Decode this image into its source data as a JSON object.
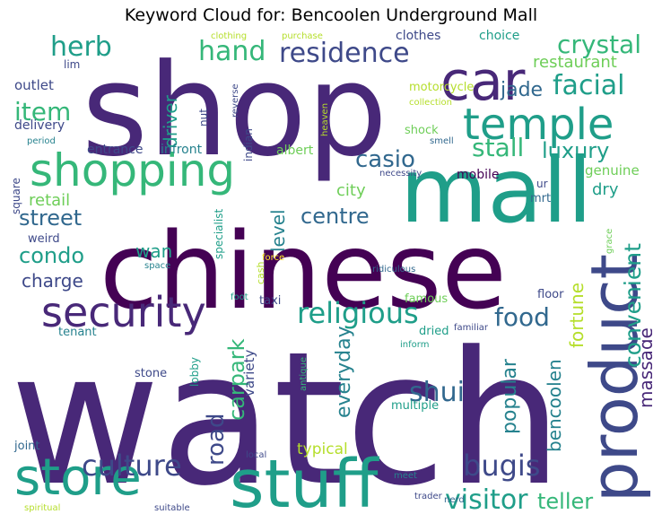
{
  "title": "Keyword Cloud for: Bencoolen Underground Mall",
  "colors": {
    "dark_purple": "#440154",
    "purple": "#482878",
    "indigo": "#3e4989",
    "blue": "#31688e",
    "teal_blue": "#26828e",
    "teal": "#1f9e89",
    "green": "#35b779",
    "light_green": "#6ece58",
    "lime": "#b5de2b",
    "yellow": "#fde725"
  },
  "words": [
    {
      "text": "watch",
      "color": "purple",
      "weight": 100
    },
    {
      "text": "shop",
      "color": "purple",
      "weight": 92
    },
    {
      "text": "chinese",
      "color": "dark_purple",
      "weight": 85
    },
    {
      "text": "mall",
      "color": "teal",
      "weight": 70
    },
    {
      "text": "product",
      "color": "indigo",
      "weight": 65
    },
    {
      "text": "stuff",
      "color": "teal",
      "weight": 62
    },
    {
      "text": "car",
      "color": "purple",
      "weight": 58
    },
    {
      "text": "store",
      "color": "teal",
      "weight": 55
    },
    {
      "text": "shopping",
      "color": "green",
      "weight": 52
    },
    {
      "text": "temple",
      "color": "teal",
      "weight": 48
    },
    {
      "text": "security",
      "color": "purple",
      "weight": 45
    },
    {
      "text": "religious",
      "color": "teal",
      "weight": 38
    },
    {
      "text": "convenient",
      "color": "teal",
      "weight": 36
    },
    {
      "text": "culture",
      "color": "indigo",
      "weight": 34
    },
    {
      "text": "bugis",
      "color": "indigo",
      "weight": 33
    },
    {
      "text": "visitor",
      "color": "teal",
      "weight": 32
    },
    {
      "text": "herb",
      "color": "teal",
      "weight": 31
    },
    {
      "text": "hand",
      "color": "green",
      "weight": 31
    },
    {
      "text": "residence",
      "color": "indigo",
      "weight": 31
    },
    {
      "text": "shui",
      "color": "blue",
      "weight": 30
    },
    {
      "text": "facial",
      "color": "teal",
      "weight": 30
    },
    {
      "text": "crystal",
      "color": "green",
      "weight": 29
    },
    {
      "text": "item",
      "color": "green",
      "weight": 29
    },
    {
      "text": "food",
      "color": "blue",
      "weight": 28
    },
    {
      "text": "stall",
      "color": "green",
      "weight": 28
    },
    {
      "text": "casio",
      "color": "blue",
      "weight": 27
    },
    {
      "text": "road",
      "color": "indigo",
      "weight": 27
    },
    {
      "text": "teller",
      "color": "green",
      "weight": 26
    },
    {
      "text": "street",
      "color": "blue",
      "weight": 25
    },
    {
      "text": "carpark",
      "color": "green",
      "weight": 25
    },
    {
      "text": "luxury",
      "color": "teal",
      "weight": 25
    },
    {
      "text": "centre",
      "color": "blue",
      "weight": 25
    },
    {
      "text": "condo",
      "color": "teal",
      "weight": 25
    },
    {
      "text": "jade",
      "color": "blue",
      "weight": 23
    },
    {
      "text": "popular",
      "color": "teal_blue",
      "weight": 23
    },
    {
      "text": "everyday",
      "color": "teal_blue",
      "weight": 23
    },
    {
      "text": "massage",
      "color": "purple",
      "weight": 22
    },
    {
      "text": "bencoolen",
      "color": "teal_blue",
      "weight": 22
    },
    {
      "text": "fortune",
      "color": "lime",
      "weight": 22
    },
    {
      "text": "driver",
      "color": "teal",
      "weight": 22
    },
    {
      "text": "charge",
      "color": "indigo",
      "weight": 21
    },
    {
      "text": "wan",
      "color": "teal",
      "weight": 21
    },
    {
      "text": "level",
      "color": "teal_blue",
      "weight": 20
    },
    {
      "text": "restaurant",
      "color": "light_green",
      "weight": 19
    },
    {
      "text": "city",
      "color": "light_green",
      "weight": 19
    },
    {
      "text": "retail",
      "color": "light_green",
      "weight": 19
    },
    {
      "text": "dry",
      "color": "teal",
      "weight": 19
    },
    {
      "text": "typical",
      "color": "lime",
      "weight": 18
    },
    {
      "text": "genuine",
      "color": "light_green",
      "weight": 16
    },
    {
      "text": "outlet",
      "color": "indigo",
      "weight": 16
    },
    {
      "text": "variety",
      "color": "indigo",
      "weight": 16
    },
    {
      "text": "clothes",
      "color": "indigo",
      "weight": 15
    },
    {
      "text": "choice",
      "color": "teal",
      "weight": 15
    },
    {
      "text": "delivery",
      "color": "indigo",
      "weight": 15
    },
    {
      "text": "entrance",
      "color": "indigo",
      "weight": 15
    },
    {
      "text": "infront",
      "color": "teal_blue",
      "weight": 15
    },
    {
      "text": "albert",
      "color": "light_green",
      "weight": 15
    },
    {
      "text": "mobile",
      "color": "dark_purple",
      "weight": 15
    },
    {
      "text": "motorcycle",
      "color": "lime",
      "weight": 14
    },
    {
      "text": "shock",
      "color": "light_green",
      "weight": 14
    },
    {
      "text": "mrt",
      "color": "blue",
      "weight": 14
    },
    {
      "text": "weird",
      "color": "indigo",
      "weight": 14
    },
    {
      "text": "tenant",
      "color": "teal_blue",
      "weight": 13
    },
    {
      "text": "floor",
      "color": "indigo",
      "weight": 13
    },
    {
      "text": "taxi",
      "color": "indigo",
      "weight": 13
    },
    {
      "text": "famous",
      "color": "light_green",
      "weight": 13
    },
    {
      "text": "dried",
      "color": "teal",
      "weight": 13
    },
    {
      "text": "stone",
      "color": "indigo",
      "weight": 13
    },
    {
      "text": "multiple",
      "color": "teal",
      "weight": 13
    },
    {
      "text": "joint",
      "color": "blue",
      "weight": 13
    },
    {
      "text": "lim",
      "color": "indigo",
      "weight": 12
    },
    {
      "text": "nut",
      "color": "indigo",
      "weight": 12
    },
    {
      "text": "square",
      "color": "indigo",
      "weight": 12
    },
    {
      "text": "indian",
      "color": "indigo",
      "weight": 12
    },
    {
      "text": "specialist",
      "color": "teal",
      "weight": 12
    },
    {
      "text": "lobby",
      "color": "teal",
      "weight": 12
    },
    {
      "text": "ur",
      "color": "indigo",
      "weight": 12
    },
    {
      "text": "cash",
      "color": "lime",
      "weight": 11
    },
    {
      "text": "clothing",
      "color": "lime",
      "weight": 10
    },
    {
      "text": "purchase",
      "color": "lime",
      "weight": 10
    },
    {
      "text": "period",
      "color": "teal_blue",
      "weight": 10
    },
    {
      "text": "reverse",
      "color": "indigo",
      "weight": 10
    },
    {
      "text": "heaven",
      "color": "lime",
      "weight": 10
    },
    {
      "text": "collection",
      "color": "lime",
      "weight": 10
    },
    {
      "text": "smell",
      "color": "blue",
      "weight": 10
    },
    {
      "text": "necessity",
      "color": "indigo",
      "weight": 10
    },
    {
      "text": "grace",
      "color": "light_green",
      "weight": 10
    },
    {
      "text": "space",
      "color": "teal_blue",
      "weight": 10
    },
    {
      "text": "force",
      "color": "yellow",
      "weight": 10
    },
    {
      "text": "ridiculous",
      "color": "blue",
      "weight": 10
    },
    {
      "text": "foot",
      "color": "teal",
      "weight": 10
    },
    {
      "text": "familiar",
      "color": "indigo",
      "weight": 10
    },
    {
      "text": "inform",
      "color": "teal",
      "weight": 10
    },
    {
      "text": "antique",
      "color": "green",
      "weight": 10
    },
    {
      "text": "local",
      "color": "indigo",
      "weight": 10
    },
    {
      "text": "meet",
      "color": "teal_blue",
      "weight": 10
    },
    {
      "text": "trader",
      "color": "indigo",
      "weight": 10
    },
    {
      "text": "nerd",
      "color": "blue",
      "weight": 10
    },
    {
      "text": "spiritual",
      "color": "lime",
      "weight": 10
    },
    {
      "text": "suitable",
      "color": "indigo",
      "weight": 10
    }
  ]
}
